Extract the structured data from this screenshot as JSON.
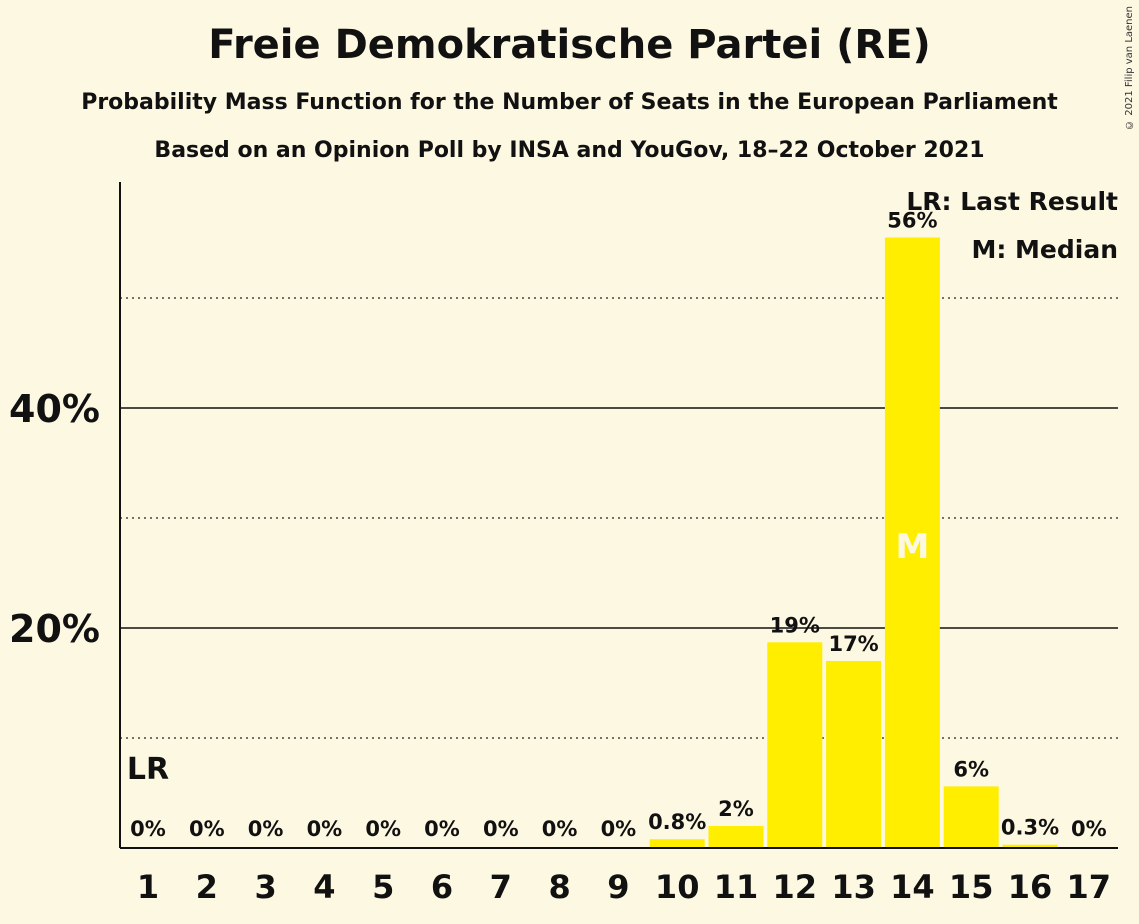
{
  "title": "Freie Demokratische Partei (RE)",
  "subtitle": "Probability Mass Function for the Number of Seats in the European Parliament",
  "subtitle2": "Based on an Opinion Poll by INSA and YouGov, 18–22 October 2021",
  "copyright": "© 2021 Filip van Laenen",
  "legend": {
    "last_result": "LR: Last Result",
    "median": "M: Median"
  },
  "colors": {
    "bar": "#ffee00",
    "background": "#fdf8e2",
    "text": "#111111"
  },
  "chart_data": {
    "type": "bar",
    "categories": [
      "1",
      "2",
      "3",
      "4",
      "5",
      "6",
      "7",
      "8",
      "9",
      "10",
      "11",
      "12",
      "13",
      "14",
      "15",
      "16",
      "17"
    ],
    "values": [
      0,
      0,
      0,
      0,
      0,
      0,
      0,
      0,
      0,
      0.8,
      2,
      18.7,
      17,
      55.5,
      5.6,
      0.3,
      0
    ],
    "data_labels": [
      "0%",
      "0%",
      "0%",
      "0%",
      "0%",
      "0%",
      "0%",
      "0%",
      "0%",
      "0.8%",
      "2%",
      "19%",
      "17%",
      "56%",
      "6%",
      "0.3%",
      "0%"
    ],
    "ylim": [
      0,
      60
    ],
    "y_ticks": [
      {
        "value": 20,
        "label": "20%"
      },
      {
        "value": 40,
        "label": "40%"
      }
    ],
    "minor_gridlines": [
      10,
      30,
      50
    ],
    "last_result": {
      "category": "1",
      "label": "LR"
    },
    "median": {
      "category": "14",
      "label": "M"
    },
    "legend_position": "top-right"
  }
}
